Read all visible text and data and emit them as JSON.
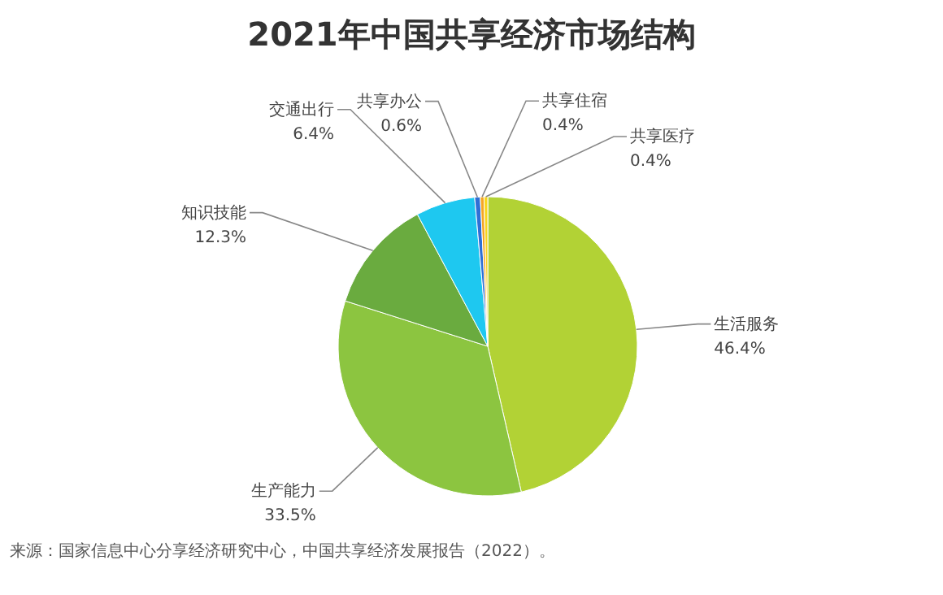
{
  "chart_data": {
    "type": "pie",
    "title": "2021年中国共享经济市场结构",
    "categories": [
      "生活服务",
      "生产能力",
      "知识技能",
      "交通出行",
      "共享办公",
      "共享住宿",
      "共享医疗"
    ],
    "values": [
      46.4,
      33.5,
      12.3,
      6.4,
      0.6,
      0.4,
      0.4
    ],
    "value_labels": [
      "46.4%",
      "33.5%",
      "12.3%",
      "6.4%",
      "0.6%",
      "0.4%",
      "0.4%"
    ],
    "colors": [
      "#b2d235",
      "#8cc540",
      "#6aab3f",
      "#1ec8f0",
      "#2f6fd6",
      "#f5a623",
      "#f8d41c"
    ],
    "annotations": [
      "来源：国家信息中心分享经济研究中心，中国共享经济发展报告（2022）。"
    ]
  }
}
